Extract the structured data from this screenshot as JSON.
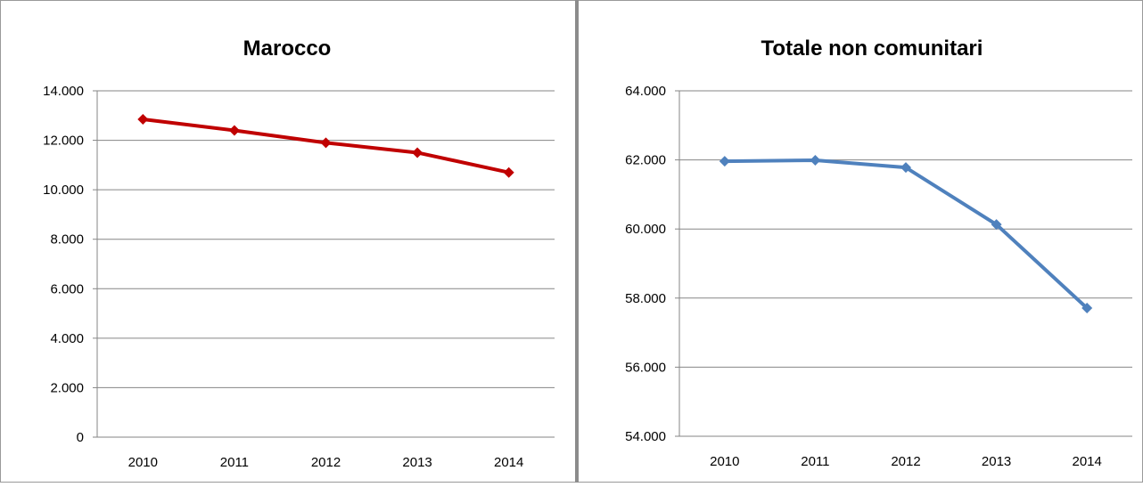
{
  "chart_data": [
    {
      "type": "line",
      "title": "Marocco",
      "categories": [
        "2010",
        "2011",
        "2012",
        "2013",
        "2014"
      ],
      "series": [
        {
          "color": "#c00000",
          "values": [
            12850,
            12400,
            11900,
            11500,
            10700
          ]
        }
      ],
      "ylim": [
        0,
        14000
      ],
      "yticks": [
        0,
        {
          "value": 2000,
          "label": "2.000"
        },
        {
          "value": 4000,
          "label": "4.000"
        },
        {
          "value": 6000,
          "label": "6.000"
        },
        {
          "value": 8000,
          "label": "8.000"
        },
        {
          "value": 10000,
          "label": "10.000"
        },
        {
          "value": 12000,
          "label": "12.000"
        },
        {
          "value": 14000,
          "label": "14.000"
        }
      ],
      "grid": true
    },
    {
      "type": "line",
      "title": "Totale non comunitari",
      "categories": [
        "2010",
        "2011",
        "2012",
        "2013",
        "2014"
      ],
      "series": [
        {
          "color": "#4f81bd",
          "values": [
            61960,
            61990,
            61780,
            60130,
            57710
          ]
        }
      ],
      "ylim": [
        54000,
        64000
      ],
      "yticks": [
        {
          "value": 54000,
          "label": "54.000"
        },
        {
          "value": 56000,
          "label": "56.000"
        },
        {
          "value": 58000,
          "label": "58.000"
        },
        {
          "value": 60000,
          "label": "60.000"
        },
        {
          "value": 62000,
          "label": "62.000"
        },
        {
          "value": 64000,
          "label": "64.000"
        }
      ],
      "grid": true
    }
  ]
}
